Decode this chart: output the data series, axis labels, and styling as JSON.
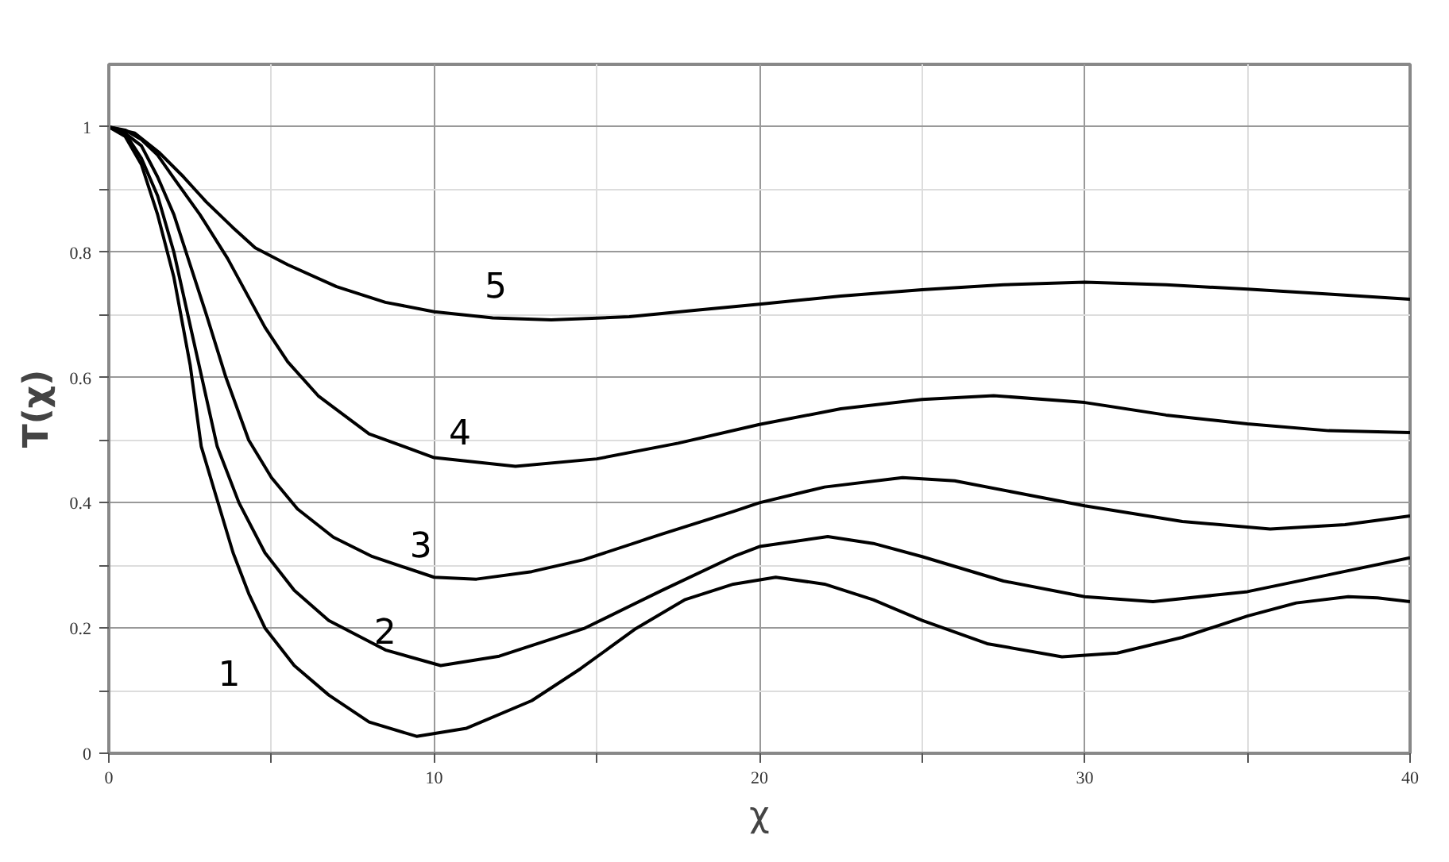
{
  "chart_data": {
    "type": "line",
    "xlabel": "χ",
    "ylabel": "T(χ)",
    "xlim": [
      0,
      40
    ],
    "ylim": [
      0,
      1.1
    ],
    "xticks": [
      0,
      {
        "value": 5,
        "label": null
      },
      10,
      {
        "value": 15,
        "label": null
      },
      20,
      {
        "value": 25,
        "label": null
      },
      30,
      {
        "value": 35,
        "label": null
      },
      40
    ],
    "yticks": [
      0,
      {
        "value": 0.1,
        "label": null
      },
      0.2,
      {
        "value": 0.3,
        "label": null
      },
      0.4,
      {
        "value": 0.5,
        "label": null
      },
      0.6,
      {
        "value": 0.7,
        "label": null
      },
      0.8,
      {
        "value": 0.9,
        "label": null
      },
      1
    ],
    "grid": true,
    "marker": "none",
    "line_style": "solid",
    "legend": false,
    "series": [
      {
        "name": "1",
        "color": "#000000",
        "x": [
          0,
          0.5,
          1,
          1.5,
          2,
          2.5,
          2.84,
          3.3,
          3.82,
          4.3,
          4.8,
          5.7,
          6.76,
          8,
          9.46,
          11,
          13,
          14.5,
          16.2,
          17.7,
          19.2,
          20.5,
          22,
          23.5,
          25,
          27,
          29.3,
          31,
          33,
          35,
          36.5,
          38.1,
          39,
          40
        ],
        "values": [
          1,
          0.985,
          0.94,
          0.86,
          0.76,
          0.62,
          0.49,
          0.41,
          0.32,
          0.255,
          0.2,
          0.14,
          0.093,
          0.05,
          0.027,
          0.04,
          0.084,
          0.135,
          0.199,
          0.245,
          0.27,
          0.281,
          0.27,
          0.245,
          0.212,
          0.175,
          0.154,
          0.16,
          0.185,
          0.219,
          0.24,
          0.25,
          0.248,
          0.242
        ]
      },
      {
        "name": "2",
        "color": "#000000",
        "x": [
          0,
          0.5,
          1,
          1.5,
          2,
          2.6,
          3.33,
          4,
          4.8,
          5.7,
          6.76,
          8.5,
          10.2,
          12,
          14.6,
          17,
          19.2,
          20,
          22.1,
          23.5,
          25,
          27.5,
          30,
          32.1,
          35,
          37.5,
          40
        ],
        "values": [
          1,
          0.99,
          0.95,
          0.89,
          0.8,
          0.66,
          0.49,
          0.4,
          0.32,
          0.26,
          0.212,
          0.165,
          0.14,
          0.155,
          0.199,
          0.26,
          0.314,
          0.33,
          0.346,
          0.335,
          0.314,
          0.275,
          0.25,
          0.242,
          0.258,
          0.285,
          0.312
        ]
      },
      {
        "name": "3",
        "color": "#000000",
        "x": [
          0,
          0.5,
          1,
          1.5,
          2,
          2.5,
          3,
          3.6,
          4.3,
          5,
          5.8,
          6.9,
          8.1,
          10,
          11.3,
          13,
          14.6,
          17,
          19.2,
          20,
          22,
          24.4,
          26,
          28,
          30,
          33,
          35.7,
          38,
          40
        ],
        "values": [
          1,
          0.99,
          0.97,
          0.92,
          0.86,
          0.78,
          0.7,
          0.6,
          0.5,
          0.44,
          0.39,
          0.345,
          0.314,
          0.281,
          0.278,
          0.29,
          0.309,
          0.35,
          0.386,
          0.4,
          0.425,
          0.44,
          0.435,
          0.415,
          0.395,
          0.37,
          0.358,
          0.365,
          0.379
        ]
      },
      {
        "name": "4",
        "color": "#000000",
        "x": [
          0,
          0.5,
          1,
          1.5,
          2,
          2.8,
          3.65,
          4.8,
          5.5,
          6.45,
          8,
          10,
          12.5,
          15,
          17.5,
          20,
          22.5,
          25,
          27.2,
          30,
          32.5,
          35,
          37.5,
          40
        ],
        "values": [
          1,
          0.995,
          0.98,
          0.955,
          0.918,
          0.86,
          0.79,
          0.68,
          0.625,
          0.57,
          0.51,
          0.472,
          0.458,
          0.47,
          0.495,
          0.525,
          0.55,
          0.565,
          0.571,
          0.56,
          0.54,
          0.526,
          0.515,
          0.512
        ]
      },
      {
        "name": "5",
        "color": "#000000",
        "x": [
          0,
          0.8,
          1.53,
          2.3,
          3,
          3.8,
          4.5,
          5.5,
          7,
          8.5,
          10,
          11.8,
          13.6,
          16,
          18,
          20,
          22.5,
          25,
          27.5,
          30,
          32.5,
          35,
          37.5,
          40
        ],
        "values": [
          1,
          0.99,
          0.96,
          0.92,
          0.88,
          0.84,
          0.807,
          0.78,
          0.745,
          0.72,
          0.705,
          0.695,
          0.692,
          0.697,
          0.707,
          0.717,
          0.73,
          0.74,
          0.748,
          0.752,
          0.748,
          0.741,
          0.733,
          0.725
        ]
      }
    ]
  }
}
